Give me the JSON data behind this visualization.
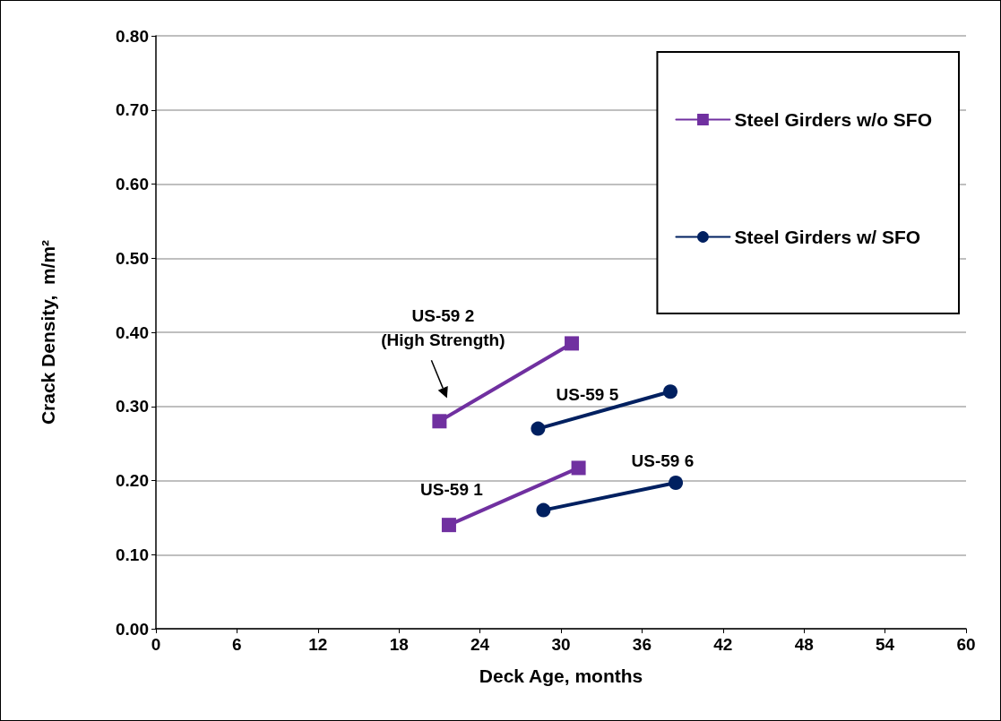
{
  "chart_data": {
    "type": "line",
    "xlabel": "Deck Age, months",
    "ylabel": "Crack Density,  m/m²",
    "xlim": [
      0,
      60
    ],
    "xticks": [
      0,
      6,
      12,
      18,
      24,
      30,
      36,
      42,
      48,
      54,
      60
    ],
    "ylim": [
      0,
      0.8
    ],
    "yticks": [
      {
        "value": 0,
        "label": "0.00"
      },
      {
        "value": 0.1,
        "label": "0.10"
      },
      {
        "value": 0.2,
        "label": "0.20"
      },
      {
        "value": 0.3,
        "label": "0.30"
      },
      {
        "value": 0.4,
        "label": "0.40"
      },
      {
        "value": 0.5,
        "label": "0.50"
      },
      {
        "value": 0.6,
        "label": "0.60"
      },
      {
        "value": 0.7,
        "label": "0.70"
      },
      {
        "value": 0.8,
        "label": "0.80"
      }
    ],
    "grid": "y",
    "legend": "top right",
    "series": [
      {
        "name": "Steel Girders w/o SFO",
        "color": "#7030a0",
        "marker": "square",
        "x": [
          21,
          30.8
        ],
        "values": [
          0.28,
          0.385
        ]
      },
      {
        "name": "Steel Girders w/ SFO",
        "color": "#002060",
        "marker": "circle",
        "x": [
          28.3,
          38.1
        ],
        "values": [
          0.27,
          0.32
        ]
      },
      {
        "color": "#002060",
        "marker": "circle",
        "x": [
          28.7,
          38.5
        ],
        "values": [
          0.16,
          0.197
        ]
      },
      {
        "color": "#7030a0",
        "marker": "square",
        "x": [
          21.7,
          31.3
        ],
        "values": [
          0.14,
          0.217
        ]
      }
    ],
    "annotations": [
      "US-59 2\n(High Strength)",
      "US-59 5",
      "US-59 6",
      "US-59 1"
    ]
  }
}
